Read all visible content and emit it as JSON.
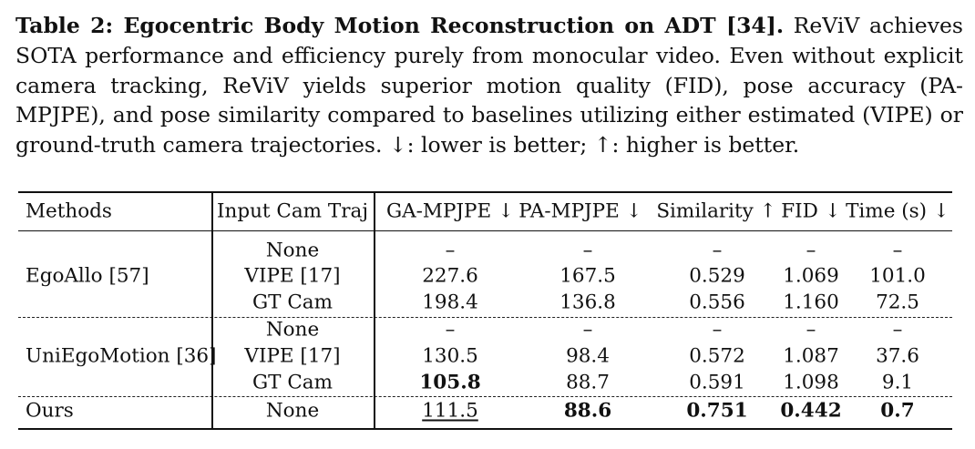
{
  "caption": {
    "title": "Table 2: Egocentric Body Motion Reconstruction on ADT [34].",
    "line1_rest": "ReViV",
    "line2": "achieves SOTA performance and efficiency purely from monocular video. Even without",
    "line3": "explicit camera tracking, ReViV yields superior motion quality (FID), pose accuracy",
    "line4": "(PA-MPJPE), and pose similarity compared to baselines utilizing either estimated",
    "line5": "(VIPE) or ground-truth camera trajectories. ↓: lower is better; ↑: higher is better."
  },
  "table": {
    "headers": [
      "Methods",
      "Input Cam Traj",
      "GA-MPJPE ↓",
      "PA-MPJPE ↓",
      "Similarity ↑",
      "FID ↓",
      "Time (s) ↓"
    ],
    "groups": [
      {
        "method": "EgoAllo [57]",
        "rows": [
          {
            "input": "None",
            "ga": "–",
            "pa": "–",
            "sim": "–",
            "fid": "–",
            "time": "–"
          },
          {
            "input": "VIPE [17]",
            "ga": "227.6",
            "pa": "167.5",
            "sim": "0.529",
            "fid": "1.069",
            "time": "101.0"
          },
          {
            "input": "GT Cam",
            "ga": "198.4",
            "pa": "136.8",
            "sim": "0.556",
            "fid": "1.160",
            "time": "72.5"
          }
        ]
      },
      {
        "method": "UniEgoMotion [36]",
        "rows": [
          {
            "input": "None",
            "ga": "–",
            "pa": "–",
            "sim": "–",
            "fid": "–",
            "time": "–"
          },
          {
            "input": "VIPE [17]",
            "ga": "130.5",
            "pa": "98.4",
            "sim": "0.572",
            "fid": "1.087",
            "time": "37.6"
          },
          {
            "input": "GT Cam",
            "ga": "105.8",
            "pa": "88.7",
            "sim": "0.591",
            "fid": "1.098",
            "time": "9.1"
          }
        ]
      },
      {
        "method": "Ours",
        "rows": [
          {
            "input": "None",
            "ga": "111.5",
            "pa": "88.6",
            "sim": "0.751",
            "fid": "0.442",
            "time": "0.7"
          }
        ]
      }
    ]
  }
}
